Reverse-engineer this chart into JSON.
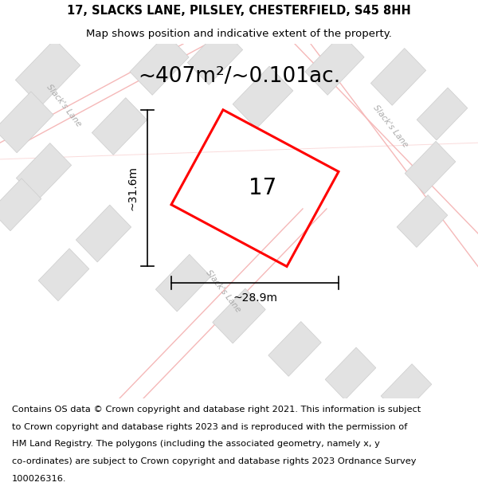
{
  "title_line1": "17, SLACKS LANE, PILSLEY, CHESTERFIELD, S45 8HH",
  "title_line2": "Map shows position and indicative extent of the property.",
  "area_label": "~407m²/~0.101ac.",
  "width_label": "~28.9m",
  "height_label": "~31.6m",
  "plot_number": "17",
  "footer_lines": [
    "Contains OS data © Crown copyright and database right 2021. This information is subject",
    "to Crown copyright and database rights 2023 and is reproduced with the permission of",
    "HM Land Registry. The polygons (including the associated geometry, namely x, y",
    "co-ordinates) are subject to Crown copyright and database rights 2023 Ordnance Survey",
    "100026316."
  ],
  "bg_color": "#f2f2f2",
  "building_color": "#e2e2e2",
  "building_edge": "#cccccc",
  "road_line_color": "#f5b8b8",
  "property_color": "#ff0000",
  "title_fontsize": 10.5,
  "subtitle_fontsize": 9.5,
  "area_fontsize": 19,
  "dim_fontsize": 10,
  "plot_num_fontsize": 20,
  "footer_fontsize": 8.2,
  "road_label_color": "#aaaaaa",
  "road_label_fontsize": 7.5
}
